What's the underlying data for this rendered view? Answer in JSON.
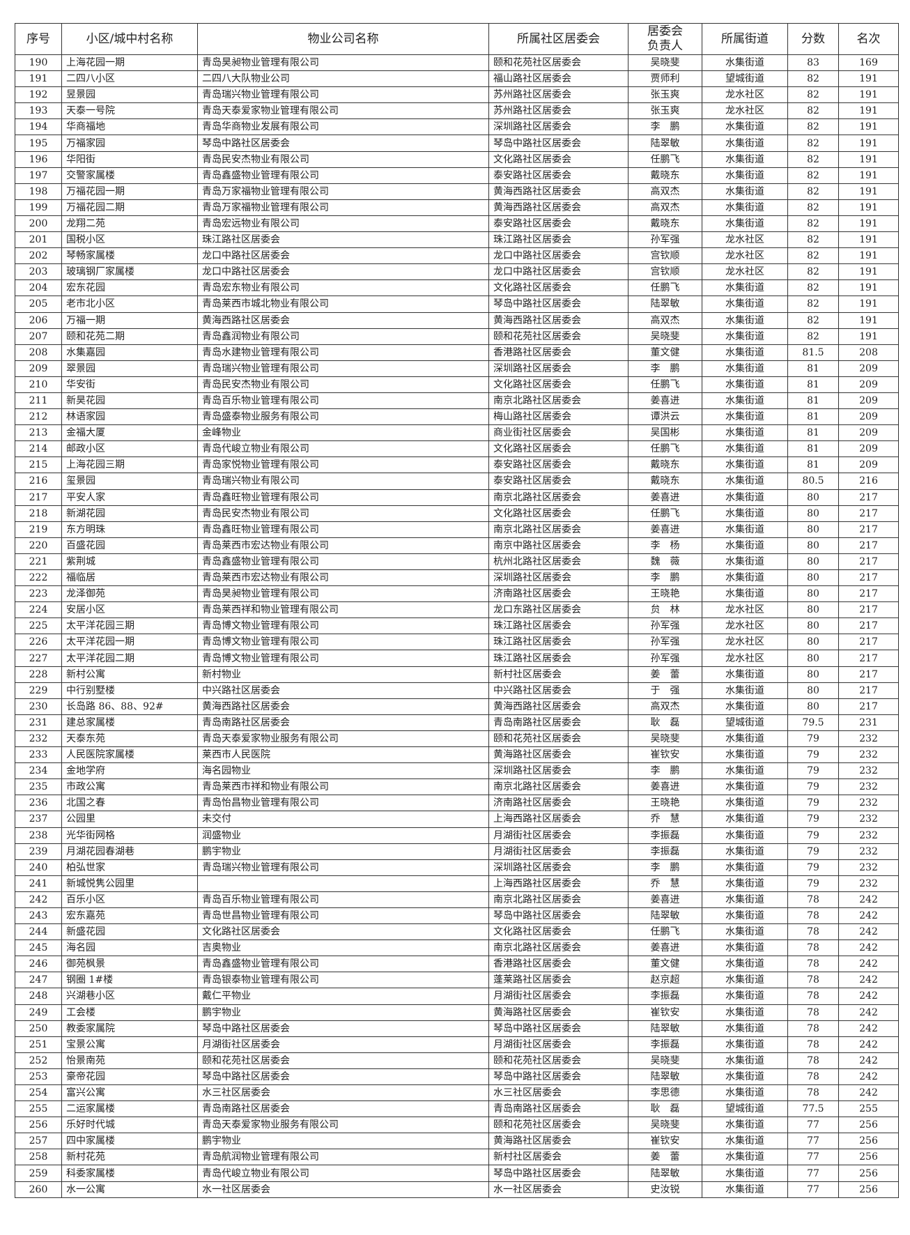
{
  "headers": [
    "序号",
    "小区/城中村名称",
    "物业公司名称",
    "所属社区居委会",
    "居委会负责人",
    "所属街道",
    "分数",
    "名次"
  ],
  "header_leader_lines": [
    "居委会",
    "负责人"
  ],
  "rows": [
    [
      "190",
      "上海花园一期",
      "青岛昊昶物业管理有限公司",
      "颐和花苑社区居委会",
      "吴晓斐",
      "水集街道",
      "83",
      "169"
    ],
    [
      "191",
      "二四八小区",
      "二四八大队物业公司",
      "福山路社区居委会",
      "贾师利",
      "望城街道",
      "82",
      "191"
    ],
    [
      "192",
      "昱景园",
      "青岛瑞兴物业管理有限公司",
      "苏州路社区居委会",
      "张玉爽",
      "龙水社区",
      "82",
      "191"
    ],
    [
      "193",
      "天泰一号院",
      "青岛天泰爱家物业管理有限公司",
      "苏州路社区居委会",
      "张玉爽",
      "龙水社区",
      "82",
      "191"
    ],
    [
      "194",
      "华商福地",
      "青岛华商物业发展有限公司",
      "深圳路社区居委会",
      "李　鹏",
      "水集街道",
      "82",
      "191"
    ],
    [
      "195",
      "万福家园",
      "琴岛中路社区居委会",
      "琴岛中路社区居委会",
      "陆翠敏",
      "水集街道",
      "82",
      "191"
    ],
    [
      "196",
      "华阳街",
      "青岛民安杰物业有限公司",
      "文化路社区居委会",
      "任鹏飞",
      "水集街道",
      "82",
      "191"
    ],
    [
      "197",
      "交警家属楼",
      "青岛鑫盛物业管理有限公司",
      "泰安路社区居委会",
      "戴晓东",
      "水集街道",
      "82",
      "191"
    ],
    [
      "198",
      "万福花园一期",
      "青岛万家福物业管理有限公司",
      "黄海西路社区居委会",
      "高双杰",
      "水集街道",
      "82",
      "191"
    ],
    [
      "199",
      "万福花园二期",
      "青岛万家福物业管理有限公司",
      "黄海西路社区居委会",
      "高双杰",
      "水集街道",
      "82",
      "191"
    ],
    [
      "200",
      "龙翔二苑",
      "青岛宏远物业有限公司",
      "泰安路社区居委会",
      "戴晓东",
      "水集街道",
      "82",
      "191"
    ],
    [
      "201",
      "国税小区",
      "珠江路社区居委会",
      "珠江路社区居委会",
      "孙军强",
      "龙水社区",
      "82",
      "191"
    ],
    [
      "202",
      "琴畅家属楼",
      "龙口中路社区居委会",
      "龙口中路社区居委会",
      "宫钦顺",
      "龙水社区",
      "82",
      "191"
    ],
    [
      "203",
      "玻璃钢厂家属楼",
      "龙口中路社区居委会",
      "龙口中路社区居委会",
      "宫钦顺",
      "龙水社区",
      "82",
      "191"
    ],
    [
      "204",
      "宏东花园",
      "青岛宏东物业有限公司",
      "文化路社区居委会",
      "任鹏飞",
      "水集街道",
      "82",
      "191"
    ],
    [
      "205",
      "老市北小区",
      "青岛莱西市城北物业有限公司",
      "琴岛中路社区居委会",
      "陆翠敏",
      "水集街道",
      "82",
      "191"
    ],
    [
      "206",
      "万福一期",
      "黄海西路社区居委会",
      "黄海西路社区居委会",
      "高双杰",
      "水集街道",
      "82",
      "191"
    ],
    [
      "207",
      "颐和花苑二期",
      "青岛鑫润物业有限公司",
      "颐和花苑社区居委会",
      "吴晓斐",
      "水集街道",
      "82",
      "191"
    ],
    [
      "208",
      "水集嘉园",
      "青岛水建物业管理有限公司",
      "香港路社区居委会",
      "董文健",
      "水集街道",
      "81.5",
      "208"
    ],
    [
      "209",
      "翠景园",
      "青岛瑞兴物业管理有限公司",
      "深圳路社区居委会",
      "李　鹏",
      "水集街道",
      "81",
      "209"
    ],
    [
      "210",
      "华安街",
      "青岛民安杰物业有限公司",
      "文化路社区居委会",
      "任鹏飞",
      "水集街道",
      "81",
      "209"
    ],
    [
      "211",
      "新昊花园",
      "青岛百乐物业管理有限公司",
      "南京北路社区居委会",
      "姜喜进",
      "水集街道",
      "81",
      "209"
    ],
    [
      "212",
      "林语家园",
      "青岛盛泰物业服务有限公司",
      "梅山路社区居委会",
      "谭洪云",
      "水集街道",
      "81",
      "209"
    ],
    [
      "213",
      "金福大厦",
      "金峰物业",
      "商业街社区居委会",
      "吴国彬",
      "水集街道",
      "81",
      "209"
    ],
    [
      "214",
      "邮政小区",
      "青岛代峻立物业有限公司",
      "文化路社区居委会",
      "任鹏飞",
      "水集街道",
      "81",
      "209"
    ],
    [
      "215",
      "上海花园三期",
      "青岛家悦物业管理有限公司",
      "泰安路社区居委会",
      "戴晓东",
      "水集街道",
      "81",
      "209"
    ],
    [
      "216",
      "玺景园",
      "青岛瑞兴物业有限公司",
      "泰安路社区居委会",
      "戴晓东",
      "水集街道",
      "80.5",
      "216"
    ],
    [
      "217",
      "平安人家",
      "青岛鑫旺物业管理有限公司",
      "南京北路社区居委会",
      "姜喜进",
      "水集街道",
      "80",
      "217"
    ],
    [
      "218",
      "新湖花园",
      "青岛民安杰物业有限公司",
      "文化路社区居委会",
      "任鹏飞",
      "水集街道",
      "80",
      "217"
    ],
    [
      "219",
      "东方明珠",
      "青岛鑫旺物业管理有限公司",
      "南京北路社区居委会",
      "姜喜进",
      "水集街道",
      "80",
      "217"
    ],
    [
      "220",
      "百盛花园",
      "青岛莱西市宏达物业有限公司",
      "南京中路社区居委会",
      "李　杨",
      "水集街道",
      "80",
      "217"
    ],
    [
      "221",
      "紫荆城",
      "青岛鑫盛物业管理有限公司",
      "杭州北路社区居委会",
      "魏　薇",
      "水集街道",
      "80",
      "217"
    ],
    [
      "222",
      "福临居",
      "青岛莱西市宏达物业有限公司",
      "深圳路社区居委会",
      "李　鹏",
      "水集街道",
      "80",
      "217"
    ],
    [
      "223",
      "龙泽御苑",
      "青岛昊昶物业管理有限公司",
      "济南路社区居委会",
      "王晓艳",
      "水集街道",
      "80",
      "217"
    ],
    [
      "224",
      "安居小区",
      "青岛莱西祥和物业管理有限公司",
      "龙口东路社区居委会",
      "贠　林",
      "龙水社区",
      "80",
      "217"
    ],
    [
      "225",
      "太平洋花园三期",
      "青岛博文物业管理有限公司",
      "珠江路社区居委会",
      "孙军强",
      "龙水社区",
      "80",
      "217"
    ],
    [
      "226",
      "太平洋花园一期",
      "青岛博文物业管理有限公司",
      "珠江路社区居委会",
      "孙军强",
      "龙水社区",
      "80",
      "217"
    ],
    [
      "227",
      "太平洋花园二期",
      "青岛博文物业管理有限公司",
      "珠江路社区居委会",
      "孙军强",
      "龙水社区",
      "80",
      "217"
    ],
    [
      "228",
      "新村公寓",
      "新村物业",
      "新村社区居委会",
      "姜　蕾",
      "水集街道",
      "80",
      "217"
    ],
    [
      "229",
      "中行别墅楼",
      "中兴路社区居委会",
      "中兴路社区居委会",
      "于　强",
      "水集街道",
      "80",
      "217"
    ],
    [
      "230",
      "长岛路 86、88、92#",
      "黄海西路社区居委会",
      "黄海西路社区居委会",
      "高双杰",
      "水集街道",
      "80",
      "217"
    ],
    [
      "231",
      "建总家属楼",
      "青岛南路社区居委会",
      "青岛南路社区居委会",
      "耿　磊",
      "望城街道",
      "79.5",
      "231"
    ],
    [
      "232",
      "天泰东苑",
      "青岛天泰爱家物业服务有限公司",
      "颐和花苑社区居委会",
      "吴晓斐",
      "水集街道",
      "79",
      "232"
    ],
    [
      "233",
      "人民医院家属楼",
      "莱西市人民医院",
      "黄海路社区居委会",
      "崔钦安",
      "水集街道",
      "79",
      "232"
    ],
    [
      "234",
      "金地学府",
      "海名园物业",
      "深圳路社区居委会",
      "李　鹏",
      "水集街道",
      "79",
      "232"
    ],
    [
      "235",
      "市政公寓",
      "青岛莱西市祥和物业有限公司",
      "南京北路社区居委会",
      "姜喜进",
      "水集街道",
      "79",
      "232"
    ],
    [
      "236",
      "北国之春",
      "青岛怡昌物业管理有限公司",
      "济南路社区居委会",
      "王晓艳",
      "水集街道",
      "79",
      "232"
    ],
    [
      "237",
      "公园里",
      "未交付",
      "上海西路社区居委会",
      "乔　慧",
      "水集街道",
      "79",
      "232"
    ],
    [
      "238",
      "光华街网格",
      "润盛物业",
      "月湖街社区居委会",
      "李振磊",
      "水集街道",
      "79",
      "232"
    ],
    [
      "239",
      "月湖花园春湖巷",
      "鹏宇物业",
      "月湖街社区居委会",
      "李振磊",
      "水集街道",
      "79",
      "232"
    ],
    [
      "240",
      "柏弘世家",
      "青岛瑞兴物业管理有限公司",
      "深圳路社区居委会",
      "李　鹏",
      "水集街道",
      "79",
      "232"
    ],
    [
      "241",
      "新城悦隽公园里",
      "",
      "上海西路社区居委会",
      "乔　慧",
      "水集街道",
      "79",
      "232"
    ],
    [
      "242",
      "百乐小区",
      "青岛百乐物业管理有限公司",
      "南京北路社区居委会",
      "姜喜进",
      "水集街道",
      "78",
      "242"
    ],
    [
      "243",
      "宏东嘉苑",
      "青岛世昌物业管理有限公司",
      "琴岛中路社区居委会",
      "陆翠敏",
      "水集街道",
      "78",
      "242"
    ],
    [
      "244",
      "新盛花园",
      "文化路社区居委会",
      "文化路社区居委会",
      "任鹏飞",
      "水集街道",
      "78",
      "242"
    ],
    [
      "245",
      "海名园",
      "吉奥物业",
      "南京北路社区居委会",
      "姜喜进",
      "水集街道",
      "78",
      "242"
    ],
    [
      "246",
      "御苑枫景",
      "青岛鑫盛物业管理有限公司",
      "香港路社区居委会",
      "董文健",
      "水集街道",
      "78",
      "242"
    ],
    [
      "247",
      "钢圈 1#楼",
      "青岛银泰物业管理有限公司",
      "蓬莱路社区居委会",
      "赵京超",
      "水集街道",
      "78",
      "242"
    ],
    [
      "248",
      "兴湖巷小区",
      "戴仁平物业",
      "月湖街社区居委会",
      "李振磊",
      "水集街道",
      "78",
      "242"
    ],
    [
      "249",
      "工会楼",
      "鹏宇物业",
      "黄海路社区居委会",
      "崔钦安",
      "水集街道",
      "78",
      "242"
    ],
    [
      "250",
      "教委家属院",
      "琴岛中路社区居委会",
      "琴岛中路社区居委会",
      "陆翠敏",
      "水集街道",
      "78",
      "242"
    ],
    [
      "251",
      "宝景公寓",
      "月湖街社区居委会",
      "月湖街社区居委会",
      "李振磊",
      "水集街道",
      "78",
      "242"
    ],
    [
      "252",
      "怡景南苑",
      "颐和花苑社区居委会",
      "颐和花苑社区居委会",
      "吴晓斐",
      "水集街道",
      "78",
      "242"
    ],
    [
      "253",
      "豪帝花园",
      "琴岛中路社区居委会",
      "琴岛中路社区居委会",
      "陆翠敏",
      "水集街道",
      "78",
      "242"
    ],
    [
      "254",
      "富兴公寓",
      "水三社区居委会",
      "水三社区居委会",
      "李思德",
      "水集街道",
      "78",
      "242"
    ],
    [
      "255",
      "二运家属楼",
      "青岛南路社区居委会",
      "青岛南路社区居委会",
      "耿　磊",
      "望城街道",
      "77.5",
      "255"
    ],
    [
      "256",
      "乐好时代城",
      "青岛天泰爱家物业服务有限公司",
      "颐和花苑社区居委会",
      "吴晓斐",
      "水集街道",
      "77",
      "256"
    ],
    [
      "257",
      "四中家属楼",
      "鹏宇物业",
      "黄海路社区居委会",
      "崔钦安",
      "水集街道",
      "77",
      "256"
    ],
    [
      "258",
      "新村花苑",
      "青岛航润物业管理有限公司",
      "新村社区居委会",
      "姜　蕾",
      "水集街道",
      "77",
      "256"
    ],
    [
      "259",
      "科委家属楼",
      "青岛代峻立物业有限公司",
      "琴岛中路社区居委会",
      "陆翠敏",
      "水集街道",
      "77",
      "256"
    ],
    [
      "260",
      "水一公寓",
      "水一社区居委会",
      "水一社区居委会",
      "史汝锐",
      "水集街道",
      "77",
      "256"
    ]
  ]
}
